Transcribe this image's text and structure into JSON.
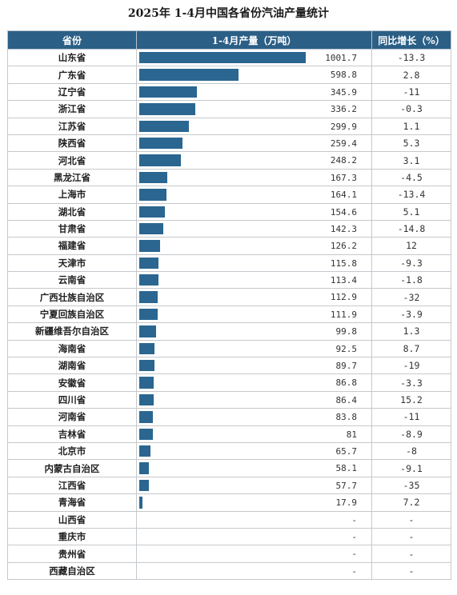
{
  "chart_data": {
    "type": "table",
    "title": "2025年 1-4月中国各省份汽油产量统计",
    "columns": [
      "省份",
      "1-4月产量（万吨）",
      "同比增长（%）"
    ],
    "bar_max": 1001.7,
    "bar_color": "#2a6690",
    "header_color": "#2b5f86",
    "rows": [
      {
        "province": "山东省",
        "output": "1001.7",
        "value": 1001.7,
        "growth": "-13.3"
      },
      {
        "province": "广东省",
        "output": "598.8",
        "value": 598.8,
        "growth": "2.8"
      },
      {
        "province": "辽宁省",
        "output": "345.9",
        "value": 345.9,
        "growth": "-11"
      },
      {
        "province": "浙江省",
        "output": "336.2",
        "value": 336.2,
        "growth": "-0.3"
      },
      {
        "province": "江苏省",
        "output": "299.9",
        "value": 299.9,
        "growth": "1.1"
      },
      {
        "province": "陕西省",
        "output": "259.4",
        "value": 259.4,
        "growth": "5.3"
      },
      {
        "province": "河北省",
        "output": "248.2",
        "value": 248.2,
        "growth": "3.1"
      },
      {
        "province": "黑龙江省",
        "output": "167.3",
        "value": 167.3,
        "growth": "-4.5"
      },
      {
        "province": "上海市",
        "output": "164.1",
        "value": 164.1,
        "growth": "-13.4"
      },
      {
        "province": "湖北省",
        "output": "154.6",
        "value": 154.6,
        "growth": "5.1"
      },
      {
        "province": "甘肃省",
        "output": "142.3",
        "value": 142.3,
        "growth": "-14.8"
      },
      {
        "province": "福建省",
        "output": "126.2",
        "value": 126.2,
        "growth": "12"
      },
      {
        "province": "天津市",
        "output": "115.8",
        "value": 115.8,
        "growth": "-9.3"
      },
      {
        "province": "云南省",
        "output": "113.4",
        "value": 113.4,
        "growth": "-1.8"
      },
      {
        "province": "广西壮族自治区",
        "output": "112.9",
        "value": 112.9,
        "growth": "-32"
      },
      {
        "province": "宁夏回族自治区",
        "output": "111.9",
        "value": 111.9,
        "growth": "-3.9"
      },
      {
        "province": "新疆维吾尔自治区",
        "output": "99.8",
        "value": 99.8,
        "growth": "1.3"
      },
      {
        "province": "海南省",
        "output": "92.5",
        "value": 92.5,
        "growth": "8.7"
      },
      {
        "province": "湖南省",
        "output": "89.7",
        "value": 89.7,
        "growth": "-19"
      },
      {
        "province": "安徽省",
        "output": "86.8",
        "value": 86.8,
        "growth": "-3.3"
      },
      {
        "province": "四川省",
        "output": "86.4",
        "value": 86.4,
        "growth": "15.2"
      },
      {
        "province": "河南省",
        "output": "83.8",
        "value": 83.8,
        "growth": "-11"
      },
      {
        "province": "吉林省",
        "output": "81",
        "value": 81,
        "growth": "-8.9"
      },
      {
        "province": "北京市",
        "output": "65.7",
        "value": 65.7,
        "growth": "-8"
      },
      {
        "province": "内蒙古自治区",
        "output": "58.1",
        "value": 58.1,
        "growth": "-9.1"
      },
      {
        "province": "江西省",
        "output": "57.7",
        "value": 57.7,
        "growth": "-35"
      },
      {
        "province": "青海省",
        "output": "17.9",
        "value": 17.9,
        "growth": "7.2"
      },
      {
        "province": "山西省",
        "output": "-",
        "value": null,
        "growth": "-"
      },
      {
        "province": "重庆市",
        "output": "-",
        "value": null,
        "growth": "-"
      },
      {
        "province": "贵州省",
        "output": "-",
        "value": null,
        "growth": "-"
      },
      {
        "province": "西藏自治区",
        "output": "-",
        "value": null,
        "growth": "-"
      }
    ]
  }
}
